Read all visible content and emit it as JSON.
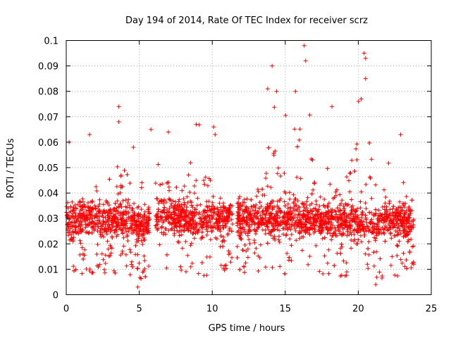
{
  "chart_data": {
    "type": "scatter",
    "title": "Day 194 of 2014, Rate Of TEC Index for receiver scrz",
    "xlabel": "GPS time / hours",
    "ylabel": "ROTI / TECUs",
    "xlim": [
      0,
      25
    ],
    "ylim": [
      0,
      0.1
    ],
    "x_ticks": [
      0,
      5,
      10,
      15,
      20,
      25
    ],
    "x_tick_labels": [
      "0",
      "5",
      "10",
      "15",
      "20",
      "25"
    ],
    "y_ticks": [
      0,
      0.01,
      0.02,
      0.03,
      0.04,
      0.05,
      0.06,
      0.07,
      0.08,
      0.09,
      0.1
    ],
    "y_tick_labels": [
      "0",
      "0.01",
      "0.02",
      "0.03",
      "0.04",
      "0.05",
      "0.06",
      "0.07",
      "0.08",
      "0.09",
      "0.1"
    ],
    "grid": true,
    "marker": "+",
    "marker_color": "#ff0000",
    "x_data_range": [
      0,
      23.8
    ],
    "data_gaps_hours": [
      [
        5.7,
        6.1
      ],
      [
        11.4,
        11.7
      ]
    ],
    "envelope": {
      "hours": [
        0,
        1,
        2,
        3,
        4,
        5,
        6,
        7,
        8,
        9,
        10,
        11,
        12,
        13,
        14,
        15,
        16,
        17,
        18,
        19,
        20,
        21,
        22,
        23,
        23.8
      ],
      "roti_min": [
        0.008,
        0.008,
        0.008,
        0.008,
        0.008,
        0.005,
        0.008,
        0.009,
        0.008,
        0.007,
        0.008,
        0.009,
        0.008,
        0.008,
        0.008,
        0.008,
        0.008,
        0.008,
        0.007,
        0.007,
        0.007,
        0.005,
        0.007,
        0.007,
        0.008
      ],
      "roti_max": [
        0.05,
        0.048,
        0.064,
        0.05,
        0.074,
        0.058,
        0.065,
        0.064,
        0.06,
        0.067,
        0.066,
        0.032,
        0.045,
        0.06,
        0.09,
        0.082,
        0.098,
        0.075,
        0.073,
        0.063,
        0.095,
        0.065,
        0.06,
        0.05,
        0.035
      ]
    },
    "outliers": [
      {
        "x": 0.2,
        "y": 0.06
      },
      {
        "x": 1.6,
        "y": 0.063
      },
      {
        "x": 3.6,
        "y": 0.074
      },
      {
        "x": 3.6,
        "y": 0.068
      },
      {
        "x": 4.6,
        "y": 0.058
      },
      {
        "x": 5.8,
        "y": 0.065
      },
      {
        "x": 7.0,
        "y": 0.064
      },
      {
        "x": 8.9,
        "y": 0.067
      },
      {
        "x": 10.1,
        "y": 0.066
      },
      {
        "x": 10.2,
        "y": 0.063
      },
      {
        "x": 13.8,
        "y": 0.081
      },
      {
        "x": 14.1,
        "y": 0.09
      },
      {
        "x": 14.4,
        "y": 0.08
      },
      {
        "x": 15.7,
        "y": 0.08
      },
      {
        "x": 16.3,
        "y": 0.098
      },
      {
        "x": 16.4,
        "y": 0.092
      },
      {
        "x": 18.2,
        "y": 0.074
      },
      {
        "x": 20.4,
        "y": 0.095
      },
      {
        "x": 20.5,
        "y": 0.093
      },
      {
        "x": 20.5,
        "y": 0.085
      },
      {
        "x": 20.2,
        "y": 0.077
      },
      {
        "x": 22.9,
        "y": 0.063
      },
      {
        "x": 4.9,
        "y": 0.003
      },
      {
        "x": 21.2,
        "y": 0.004
      }
    ]
  }
}
